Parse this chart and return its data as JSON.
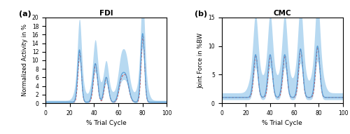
{
  "title_a": "FDI",
  "title_b": "CMC",
  "xlabel": "% Trial Cycle",
  "ylabel_a": "Normalized Activity in %",
  "ylabel_b": "Joint Force in %BW",
  "label_a": "(a)",
  "label_b": "(b)",
  "xlim": [
    0,
    100
  ],
  "ylim_a": [
    0,
    20
  ],
  "ylim_b": [
    0,
    15
  ],
  "yticks_a": [
    0,
    2,
    4,
    6,
    8,
    10,
    12,
    14,
    16,
    18,
    20
  ],
  "yticks_b": [
    0,
    5,
    10,
    15
  ],
  "mean_color": "#5aa0d8",
  "shade_color": "#88c0e8",
  "red_color": "#d04040",
  "background_color": "#ffffff",
  "peak_positions_a": [
    28,
    41,
    50,
    62,
    66,
    80
  ],
  "peak_heights_a": [
    12.2,
    9.0,
    5.8,
    4.2,
    6.0,
    16.0
  ],
  "peak_widths_a": [
    1.5,
    1.8,
    1.8,
    2.0,
    2.5,
    1.5
  ],
  "baseline_a": 0.25,
  "sd_base_a": 0.4,
  "peak_positions_b": [
    28,
    40,
    52,
    65,
    79
  ],
  "peak_heights_b": [
    7.5,
    7.5,
    7.5,
    8.5,
    9.0
  ],
  "peak_widths_b": [
    1.8,
    1.8,
    1.8,
    1.8,
    1.8
  ],
  "baseline_b": 1.0,
  "sd_base_b": 0.8
}
